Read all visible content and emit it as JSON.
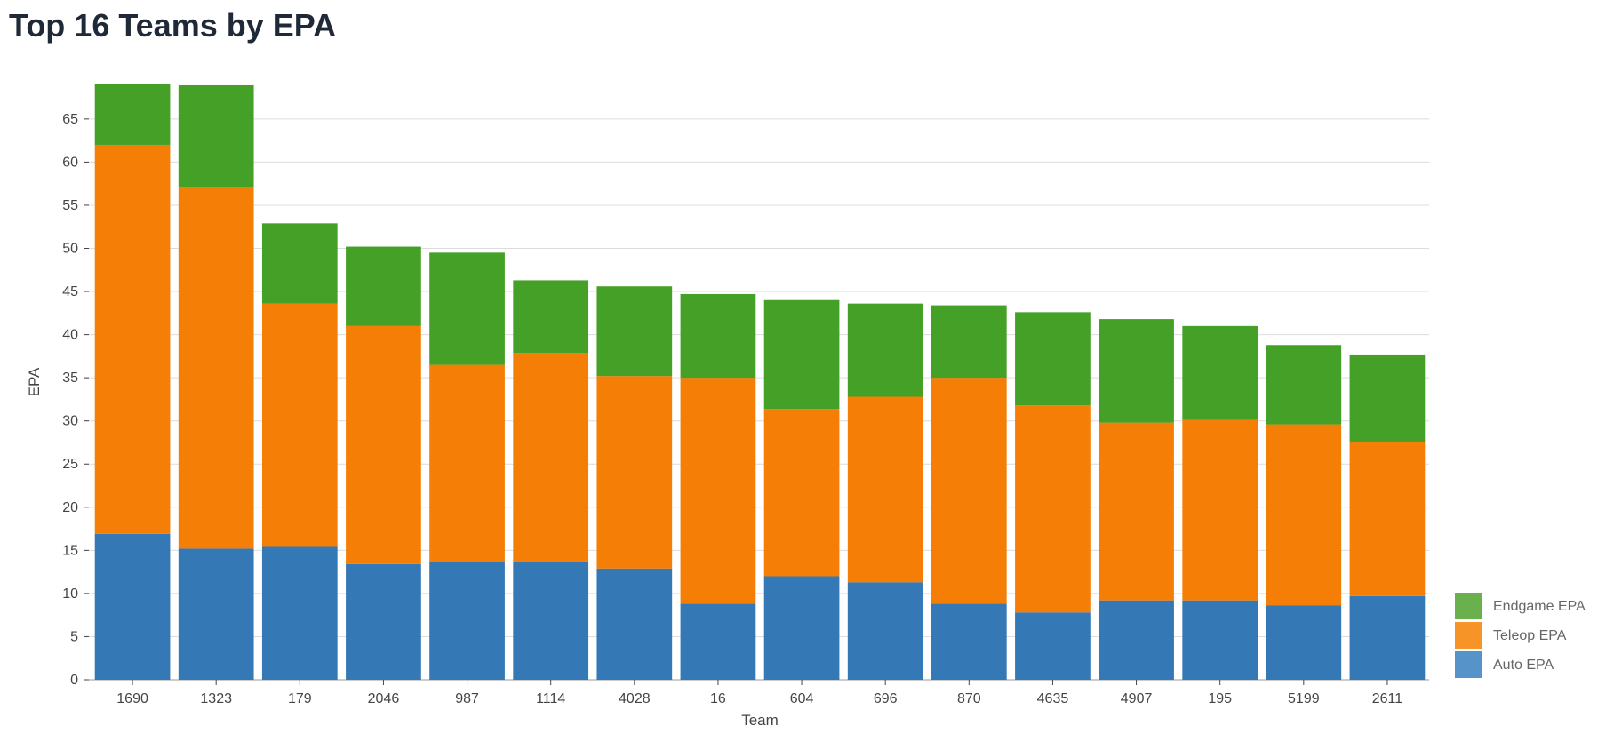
{
  "title": "Top 16 Teams by EPA",
  "chart_data": {
    "type": "bar",
    "stacked": true,
    "categories": [
      "1690",
      "1323",
      "179",
      "2046",
      "987",
      "1114",
      "4028",
      "16",
      "604",
      "696",
      "870",
      "4635",
      "4907",
      "195",
      "5199",
      "2611"
    ],
    "series": [
      {
        "name": "Auto EPA",
        "color": "#3478b6",
        "values": [
          16.9,
          15.2,
          15.5,
          13.4,
          13.6,
          13.7,
          12.9,
          8.8,
          12.0,
          11.3,
          8.8,
          7.8,
          9.2,
          9.2,
          8.6,
          9.7
        ]
      },
      {
        "name": "Teleop EPA",
        "color": "#f57f06",
        "values": [
          45.1,
          41.9,
          28.1,
          27.6,
          22.9,
          24.2,
          22.3,
          26.2,
          19.4,
          21.5,
          26.2,
          24.0,
          20.6,
          20.9,
          21.0,
          17.9
        ]
      },
      {
        "name": "Endgame EPA",
        "color": "#44a026",
        "values": [
          7.1,
          11.8,
          9.3,
          9.2,
          13.0,
          8.4,
          10.4,
          9.7,
          12.6,
          10.8,
          8.4,
          10.8,
          12.0,
          10.9,
          9.2,
          10.1
        ]
      }
    ],
    "xlabel": "Team",
    "ylabel": "EPA",
    "ylim": [
      0,
      69
    ],
    "yticks": [
      0,
      5,
      10,
      15,
      20,
      25,
      30,
      35,
      40,
      45,
      50,
      55,
      60,
      65
    ],
    "grid": true,
    "legend": {
      "position": "bottom-right",
      "entries": [
        {
          "name": "Endgame EPA",
          "color": "#6ab04c"
        },
        {
          "name": "Teleop EPA",
          "color": "#f79427"
        },
        {
          "name": "Auto EPA",
          "color": "#5693c8"
        }
      ]
    }
  }
}
